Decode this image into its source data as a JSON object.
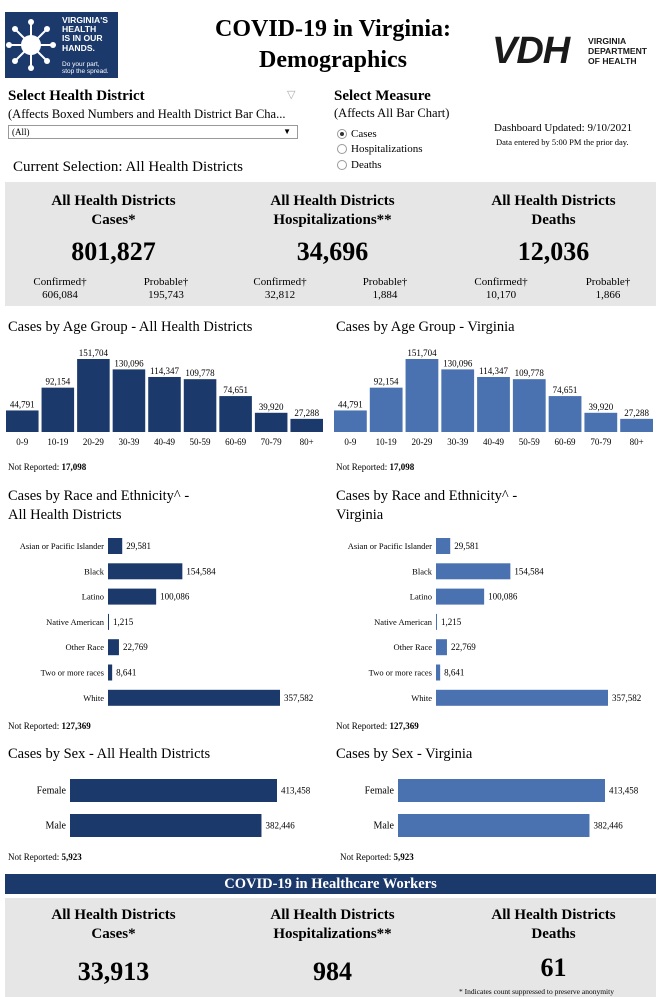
{
  "header": {
    "title_line1": "COVID-19 in Virginia:",
    "title_line2": "Demographics",
    "logo_left_text": [
      "VIRGINIA'S",
      "HEALTH",
      "IS IN OUR",
      "HANDS."
    ],
    "logo_left_sub": [
      "Do your part,",
      "stop the spread."
    ],
    "vdh_letters": "VDH",
    "vdh_words": [
      "VIRGINIA",
      "DEPARTMENT",
      "OF HEALTH"
    ]
  },
  "filters": {
    "district_title": "Select Health District",
    "district_sub": "(Affects Boxed Numbers and Health District Bar Cha...",
    "district_value": "(All)",
    "measure_title": "Select Measure",
    "measure_sub": "(Affects All Bar Chart)",
    "measure_options": [
      "Cases",
      "Hospitalizations",
      "Deaths"
    ],
    "measure_selected": "Cases",
    "updated": "Dashboard Updated: 9/10/2021",
    "updated_sub": "Data entered by 5:00 PM the prior day.",
    "current_selection": "Current Selection: All Health Districts"
  },
  "summary": [
    {
      "head1": "All Health Districts",
      "head2": "Cases*",
      "value": "801,827",
      "confirmed_label": "Confirmed†",
      "confirmed": "606,084",
      "probable_label": "Probable†",
      "probable": "195,743"
    },
    {
      "head1": "All Health Districts",
      "head2": "Hospitalizations**",
      "value": "34,696",
      "confirmed_label": "Confirmed†",
      "confirmed": "32,812",
      "probable_label": "Probable†",
      "probable": "1,884"
    },
    {
      "head1": "All Health Districts",
      "head2": "Deaths",
      "value": "12,036",
      "confirmed_label": "Confirmed†",
      "confirmed": "10,170",
      "probable_label": "Probable†",
      "probable": "1,866"
    }
  ],
  "colors": {
    "district_bar": "#1b3a6b",
    "virginia_bar": "#4a72b0",
    "panel": "#e6e6e6",
    "band": "#1b3a6b"
  },
  "not_reported_label": "Not Reported:",
  "chart_data": [
    {
      "id": "age-district",
      "type": "bar",
      "title": "Cases by Age Group - All Health Districts",
      "categories": [
        "0-9",
        "10-19",
        "20-29",
        "30-39",
        "40-49",
        "50-59",
        "60-69",
        "70-79",
        "80+"
      ],
      "values": [
        44791,
        92154,
        151704,
        130096,
        114347,
        109778,
        74651,
        39920,
        27288
      ],
      "labels": [
        "44,791",
        "92,154",
        "151,704",
        "130,096",
        "114,347",
        "109,778",
        "74,651",
        "39,920",
        "27,288"
      ],
      "not_reported": "17,098"
    },
    {
      "id": "age-virginia",
      "type": "bar",
      "title": "Cases by Age Group - Virginia",
      "categories": [
        "0-9",
        "10-19",
        "20-29",
        "30-39",
        "40-49",
        "50-59",
        "60-69",
        "70-79",
        "80+"
      ],
      "values": [
        44791,
        92154,
        151704,
        130096,
        114347,
        109778,
        74651,
        39920,
        27288
      ],
      "labels": [
        "44,791",
        "92,154",
        "151,704",
        "130,096",
        "114,347",
        "109,778",
        "74,651",
        "39,920",
        "27,288"
      ],
      "not_reported": "17,098"
    },
    {
      "id": "race-district",
      "type": "bar",
      "orientation": "horizontal",
      "title_line1": "Cases by Race and Ethnicity^ -",
      "title_line2": "All Health Districts",
      "categories": [
        "Asian or Pacific Islander",
        "Black",
        "Latino",
        "Native American",
        "Other Race",
        "Two or more races",
        "White"
      ],
      "values": [
        29581,
        154584,
        100086,
        1215,
        22769,
        8641,
        357582
      ],
      "labels": [
        "29,581",
        "154,584",
        "100,086",
        "1,215",
        "22,769",
        "8,641",
        "357,582"
      ],
      "not_reported": "127,369"
    },
    {
      "id": "race-virginia",
      "type": "bar",
      "orientation": "horizontal",
      "title_line1": "Cases by Race and Ethnicity^ -",
      "title_line2": "Virginia",
      "categories": [
        "Asian or Pacific Islander",
        "Black",
        "Latino",
        "Native American",
        "Other Race",
        "Two or more races",
        "White"
      ],
      "values": [
        29581,
        154584,
        100086,
        1215,
        22769,
        8641,
        357582
      ],
      "labels": [
        "29,581",
        "154,584",
        "100,086",
        "1,215",
        "22,769",
        "8,641",
        "357,582"
      ],
      "not_reported": "127,369"
    },
    {
      "id": "sex-district",
      "type": "bar",
      "orientation": "horizontal",
      "title": "Cases by Sex - All Health Districts",
      "categories": [
        "Female",
        "Male"
      ],
      "values": [
        413458,
        382446
      ],
      "labels": [
        "413,458",
        "382,446"
      ],
      "not_reported": "5,923"
    },
    {
      "id": "sex-virginia",
      "type": "bar",
      "orientation": "horizontal",
      "title": "Cases by Sex - Virginia",
      "categories": [
        "Female",
        "Male"
      ],
      "values": [
        413458,
        382446
      ],
      "labels": [
        "413,458",
        "382,446"
      ],
      "not_reported": "5,923"
    }
  ],
  "healthcare": {
    "band_title": "COVID-19 in Healthcare Workers",
    "cards": [
      {
        "head1": "All Health Districts",
        "head2": "Cases*",
        "value": "33,913"
      },
      {
        "head1": "All Health Districts",
        "head2": "Hospitalizations**",
        "value": "984"
      },
      {
        "head1": "All Health Districts",
        "head2": "Deaths",
        "value": "61"
      }
    ],
    "footnote": "* Indicates count suppressed to preserve anonymity"
  }
}
